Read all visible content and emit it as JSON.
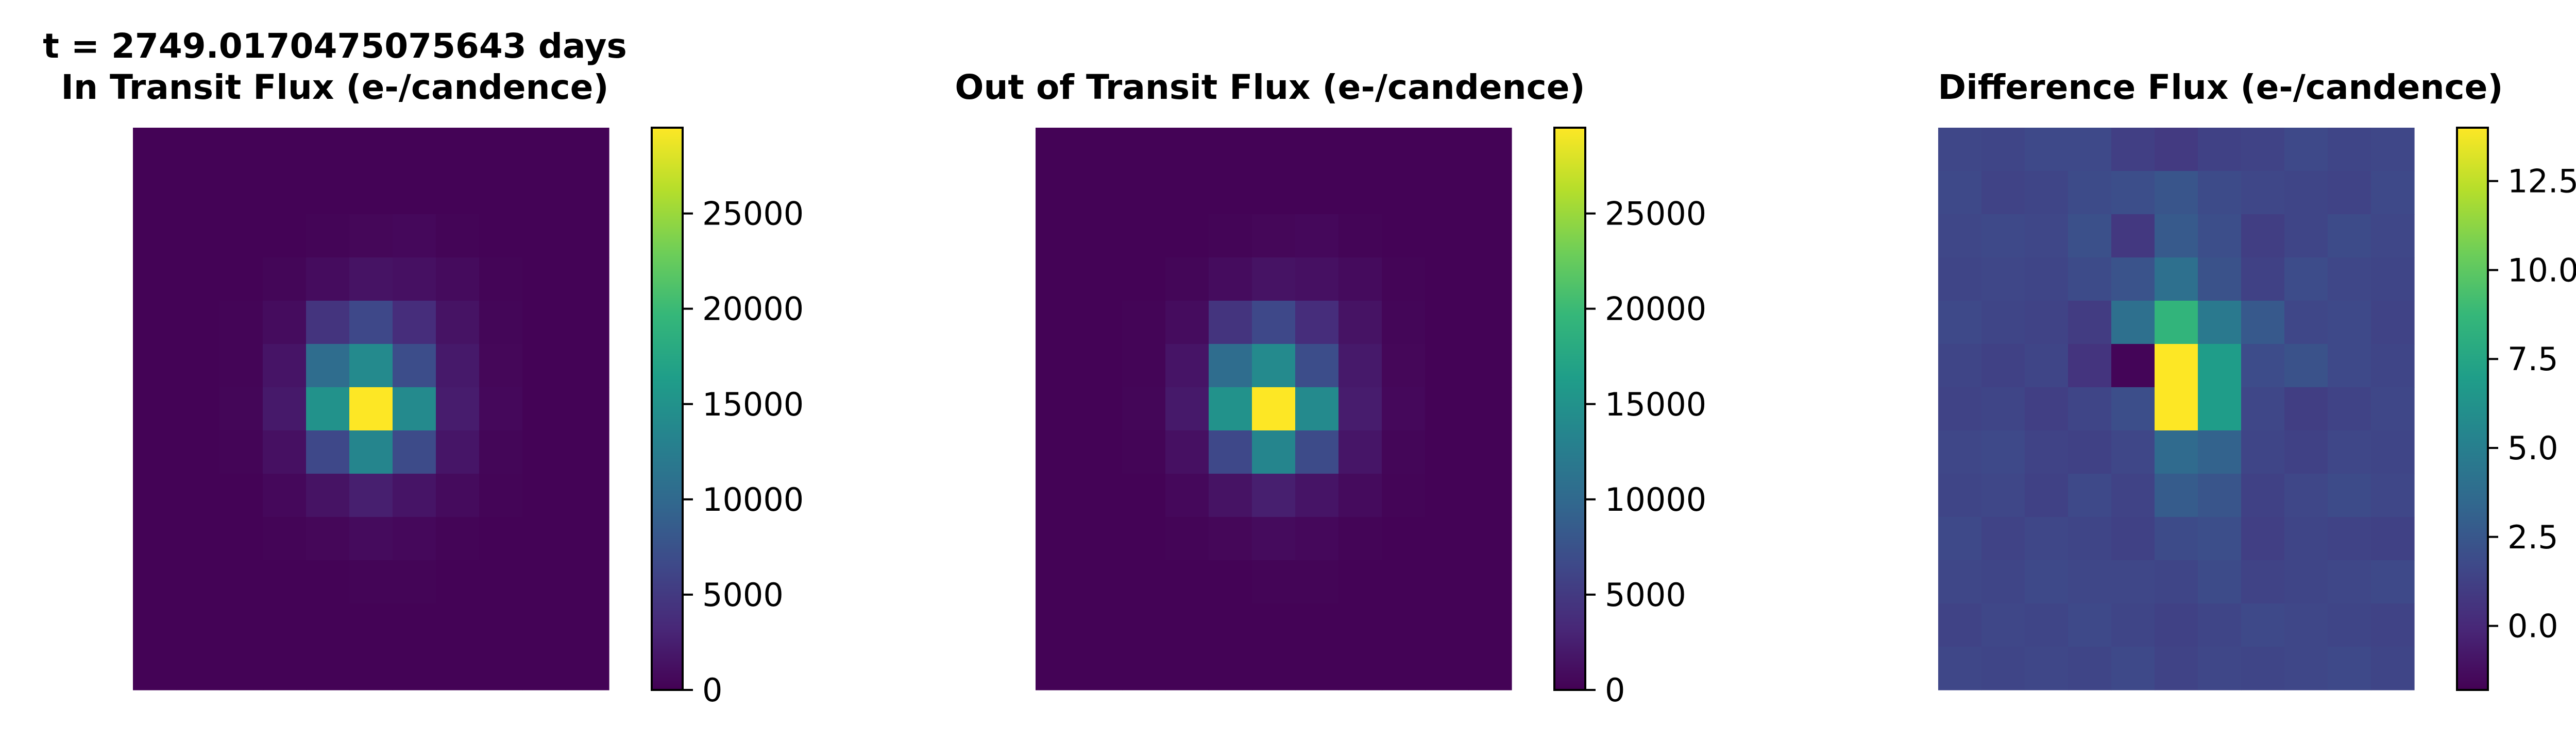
{
  "figure": {
    "colormap": "viridis",
    "colormap_stops": [
      "#440154",
      "#482878",
      "#3e4989",
      "#31688e",
      "#26828e",
      "#1f9e89",
      "#35b779",
      "#6ece58",
      "#b5de2b",
      "#fde725"
    ]
  },
  "chart_data": [
    {
      "type": "heatmap",
      "title_lines": [
        "t = 2749.0170475075643 days",
        "In Transit Flux (e-/candence)"
      ],
      "grid_rows": 13,
      "grid_cols": 11,
      "colorbar": {
        "vmin": 0,
        "vmax": 29500,
        "ticks": [
          0,
          5000,
          10000,
          15000,
          20000,
          25000
        ],
        "tick_labels": [
          "0",
          "5000",
          "10000",
          "15000",
          "20000",
          "25000"
        ]
      },
      "values": [
        [
          200,
          200,
          200,
          200,
          200,
          200,
          200,
          200,
          200,
          200,
          200
        ],
        [
          200,
          200,
          200,
          200,
          200,
          200,
          200,
          200,
          200,
          200,
          200
        ],
        [
          200,
          200,
          200,
          200,
          300,
          500,
          600,
          300,
          200,
          200,
          200
        ],
        [
          200,
          200,
          200,
          400,
          900,
          1500,
          1300,
          800,
          300,
          200,
          200
        ],
        [
          200,
          200,
          300,
          900,
          4500,
          6500,
          3800,
          1500,
          400,
          200,
          200
        ],
        [
          200,
          200,
          300,
          1600,
          10500,
          14000,
          7000,
          2000,
          500,
          200,
          200
        ],
        [
          200,
          200,
          400,
          2000,
          15000,
          29500,
          14000,
          2300,
          600,
          200,
          200
        ],
        [
          200,
          200,
          300,
          1300,
          6500,
          13500,
          6800,
          1700,
          400,
          200,
          200
        ],
        [
          200,
          200,
          200,
          600,
          1500,
          2500,
          1600,
          800,
          300,
          200,
          200
        ],
        [
          200,
          200,
          200,
          300,
          500,
          800,
          600,
          300,
          200,
          200,
          200
        ],
        [
          200,
          200,
          200,
          200,
          200,
          300,
          300,
          200,
          200,
          200,
          200
        ],
        [
          200,
          200,
          200,
          200,
          200,
          200,
          200,
          200,
          200,
          200,
          200
        ],
        [
          200,
          200,
          200,
          200,
          200,
          200,
          200,
          200,
          200,
          200,
          200
        ]
      ]
    },
    {
      "type": "heatmap",
      "title_lines": [
        "Out of Transit Flux (e-/candence)"
      ],
      "grid_rows": 13,
      "grid_cols": 11,
      "colorbar": {
        "vmin": 0,
        "vmax": 29500,
        "ticks": [
          0,
          5000,
          10000,
          15000,
          20000,
          25000
        ],
        "tick_labels": [
          "0",
          "5000",
          "10000",
          "15000",
          "20000",
          "25000"
        ]
      },
      "values": [
        [
          200,
          200,
          200,
          200,
          200,
          200,
          200,
          200,
          200,
          200,
          200
        ],
        [
          200,
          200,
          200,
          200,
          200,
          200,
          200,
          200,
          200,
          200,
          200
        ],
        [
          200,
          200,
          200,
          200,
          300,
          500,
          600,
          300,
          200,
          200,
          200
        ],
        [
          200,
          200,
          200,
          400,
          900,
          1500,
          1300,
          800,
          300,
          200,
          200
        ],
        [
          200,
          200,
          300,
          900,
          4500,
          6500,
          3800,
          1500,
          400,
          200,
          200
        ],
        [
          200,
          200,
          300,
          1600,
          10500,
          14000,
          7000,
          2000,
          500,
          200,
          200
        ],
        [
          200,
          200,
          400,
          2000,
          15000,
          29500,
          14000,
          2300,
          600,
          200,
          200
        ],
        [
          200,
          200,
          300,
          1300,
          6500,
          13500,
          6800,
          1700,
          400,
          200,
          200
        ],
        [
          200,
          200,
          200,
          600,
          1500,
          2500,
          1600,
          800,
          300,
          200,
          200
        ],
        [
          200,
          200,
          200,
          300,
          500,
          800,
          600,
          300,
          200,
          200,
          200
        ],
        [
          200,
          200,
          200,
          200,
          200,
          300,
          300,
          200,
          200,
          200,
          200
        ],
        [
          200,
          200,
          200,
          200,
          200,
          200,
          200,
          200,
          200,
          200,
          200
        ],
        [
          200,
          200,
          200,
          200,
          200,
          200,
          200,
          200,
          200,
          200,
          200
        ]
      ]
    },
    {
      "type": "heatmap",
      "title_lines": [
        "Difference Flux (e-/candence)"
      ],
      "grid_rows": 13,
      "grid_cols": 11,
      "colorbar": {
        "vmin": -1.8,
        "vmax": 14,
        "ticks": [
          0.0,
          2.5,
          5.0,
          7.5,
          10.0,
          12.5
        ],
        "tick_labels": [
          "0.0",
          "2.5",
          "5.0",
          "7.5",
          "10.0",
          "12.5"
        ]
      },
      "values": [
        [
          1.6,
          1.5,
          1.7,
          1.7,
          1.2,
          0.9,
          1.3,
          1.4,
          1.7,
          1.5,
          1.6
        ],
        [
          1.7,
          1.4,
          1.5,
          1.8,
          2.0,
          2.4,
          1.8,
          1.6,
          1.5,
          1.4,
          1.7
        ],
        [
          1.6,
          1.7,
          1.6,
          2.1,
          0.8,
          2.7,
          2.0,
          1.1,
          1.5,
          1.8,
          1.6
        ],
        [
          1.5,
          1.6,
          1.5,
          1.8,
          2.3,
          4.0,
          2.2,
          1.3,
          1.9,
          1.6,
          1.5
        ],
        [
          1.7,
          1.5,
          1.4,
          1.0,
          4.0,
          8.5,
          4.6,
          2.6,
          1.6,
          1.7,
          1.4
        ],
        [
          1.5,
          1.3,
          1.5,
          0.6,
          -1.6,
          14.0,
          6.9,
          1.9,
          2.2,
          1.7,
          1.5
        ],
        [
          1.4,
          1.5,
          1.2,
          1.5,
          2.0,
          14.0,
          6.9,
          1.6,
          1.1,
          1.4,
          1.6
        ],
        [
          1.6,
          1.7,
          1.4,
          1.3,
          1.6,
          3.7,
          3.2,
          1.5,
          1.3,
          1.6,
          1.5
        ],
        [
          1.5,
          1.6,
          1.3,
          1.7,
          1.4,
          2.8,
          2.4,
          1.3,
          1.6,
          1.8,
          1.6
        ],
        [
          1.7,
          1.4,
          1.6,
          1.5,
          1.3,
          1.8,
          2.0,
          1.2,
          1.5,
          1.4,
          1.3
        ],
        [
          1.6,
          1.5,
          1.7,
          1.6,
          1.6,
          1.5,
          1.8,
          1.4,
          1.5,
          1.6,
          1.7
        ],
        [
          1.4,
          1.6,
          1.5,
          1.7,
          1.5,
          1.3,
          1.5,
          1.7,
          1.6,
          1.5,
          1.4
        ],
        [
          1.6,
          1.5,
          1.6,
          1.5,
          1.7,
          1.4,
          1.6,
          1.5,
          1.6,
          1.7,
          1.5
        ]
      ]
    }
  ]
}
